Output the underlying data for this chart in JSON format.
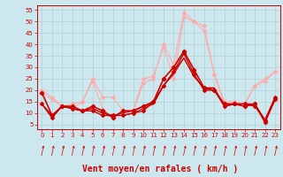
{
  "background_color": "#cce8ee",
  "grid_color": "#aacccc",
  "xlabel": "Vent moyen/en rafales ( km/h )",
  "xlabel_fontsize": 7,
  "xticks": [
    0,
    1,
    2,
    3,
    4,
    5,
    6,
    7,
    8,
    9,
    10,
    11,
    12,
    13,
    14,
    15,
    16,
    17,
    18,
    19,
    20,
    21,
    22,
    23
  ],
  "yticks": [
    5,
    10,
    15,
    20,
    25,
    30,
    35,
    40,
    45,
    50,
    55
  ],
  "ylim": [
    3,
    57
  ],
  "xlim": [
    -0.5,
    23.5
  ],
  "series": [
    {
      "x": [
        0,
        1,
        2,
        3,
        4,
        5,
        6,
        7,
        8,
        9,
        10,
        11,
        12,
        13,
        14,
        15,
        16,
        17,
        18,
        19,
        20,
        21,
        22,
        23
      ],
      "y": [
        20,
        17,
        13,
        12,
        15,
        25,
        17,
        17,
        11,
        11,
        25,
        26,
        39,
        25,
        52,
        50,
        46,
        27,
        14,
        15,
        14,
        22,
        24,
        28
      ],
      "color": "#ffaaaa",
      "lw": 0.8,
      "marker": "D",
      "markersize": 1.8,
      "zorder": 2
    },
    {
      "x": [
        0,
        1,
        2,
        3,
        4,
        5,
        6,
        7,
        8,
        9,
        10,
        11,
        12,
        13,
        14,
        15,
        16,
        17,
        18,
        19,
        20,
        21,
        22,
        23
      ],
      "y": [
        19,
        16,
        13,
        14,
        15,
        24,
        12,
        8,
        11,
        11,
        23,
        25,
        40,
        31,
        54,
        50,
        48,
        27,
        15,
        15,
        14,
        22,
        25,
        28
      ],
      "color": "#ffaaaa",
      "lw": 0.8,
      "marker": "D",
      "markersize": 1.8,
      "zorder": 2
    },
    {
      "x": [
        0,
        1,
        2,
        3,
        4,
        5,
        6,
        7,
        8,
        9,
        10,
        11,
        12,
        13,
        14,
        15,
        16,
        17,
        18,
        19,
        20,
        21,
        22,
        23
      ],
      "y": [
        14,
        9,
        13,
        12,
        11,
        12,
        10,
        9,
        10,
        11,
        13,
        14,
        22,
        28,
        34,
        26,
        21,
        21,
        13,
        14,
        14,
        14,
        7,
        16
      ],
      "color": "#cc0000",
      "lw": 0.8,
      "marker": null,
      "markersize": 0,
      "zorder": 3
    },
    {
      "x": [
        0,
        1,
        2,
        3,
        4,
        5,
        6,
        7,
        8,
        9,
        10,
        11,
        12,
        13,
        14,
        15,
        16,
        17,
        18,
        19,
        20,
        21,
        22,
        23
      ],
      "y": [
        14,
        9,
        13,
        12,
        11,
        12,
        10,
        9,
        9,
        10,
        12,
        14,
        22,
        27,
        34,
        26,
        21,
        21,
        13,
        14,
        14,
        14,
        7,
        16
      ],
      "color": "#cc0000",
      "lw": 0.8,
      "marker": null,
      "markersize": 0,
      "zorder": 3
    },
    {
      "x": [
        0,
        1,
        2,
        3,
        4,
        5,
        6,
        7,
        8,
        9,
        10,
        11,
        12,
        13,
        14,
        15,
        16,
        17,
        18,
        19,
        20,
        21,
        22,
        23
      ],
      "y": [
        14,
        8,
        13,
        12,
        11,
        11,
        9,
        9,
        9,
        10,
        11,
        15,
        22,
        28,
        36,
        27,
        20,
        20,
        13,
        14,
        14,
        13,
        7,
        17
      ],
      "color": "#cc0000",
      "lw": 1.0,
      "marker": "D",
      "markersize": 2.0,
      "zorder": 5
    },
    {
      "x": [
        0,
        1,
        2,
        3,
        4,
        5,
        6,
        7,
        8,
        9,
        10,
        11,
        12,
        13,
        14,
        15,
        16,
        17,
        18,
        19,
        20,
        21,
        22,
        23
      ],
      "y": [
        19,
        9,
        13,
        13,
        11,
        13,
        11,
        8,
        11,
        11,
        13,
        15,
        25,
        30,
        37,
        29,
        21,
        20,
        14,
        14,
        13,
        14,
        6,
        16
      ],
      "color": "#cc0000",
      "lw": 1.2,
      "marker": "D",
      "markersize": 2.2,
      "zorder": 5
    }
  ],
  "tick_fontsize": 5,
  "axis_label_color": "#cc0000"
}
